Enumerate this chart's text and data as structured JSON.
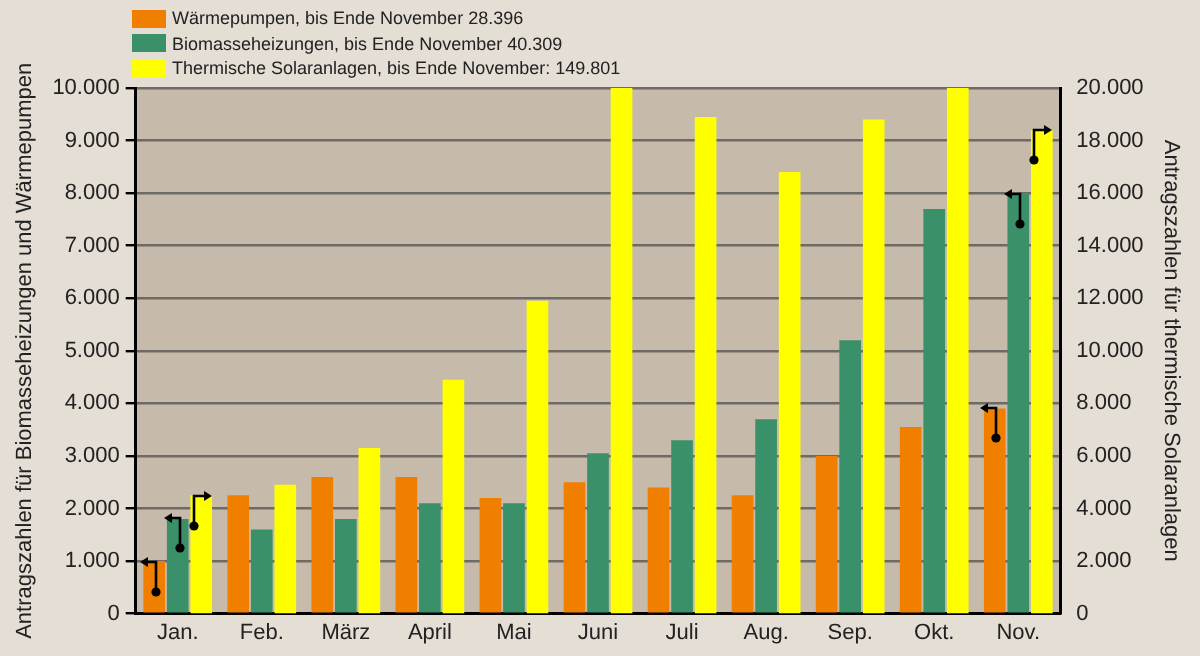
{
  "chart_data": {
    "type": "bar",
    "categories": [
      "Jan.",
      "Feb.",
      "März",
      "April",
      "Mai",
      "Juni",
      "Juli",
      "Aug.",
      "Sep.",
      "Okt.",
      "Nov."
    ],
    "series": [
      {
        "name": "Wärmepumpen, bis Ende November 28.396",
        "color": "#f07f00",
        "values": [
          1000,
          2250,
          2600,
          2600,
          2200,
          2500,
          2400,
          2250,
          3000,
          3550,
          3900
        ]
      },
      {
        "name": "Biomasseheizungen, bis Ende November 40.309",
        "color": "#3a9068",
        "values": [
          1800,
          1600,
          1800,
          2100,
          2100,
          3050,
          3300,
          3700,
          5200,
          7700,
          8000
        ]
      },
      {
        "name": "Thermische Solaranlagen, bis Ende November: 149.801",
        "color": "#ffff00",
        "axis": "y2",
        "values": [
          4500,
          4900,
          6300,
          8900,
          11900,
          20000,
          18900,
          16800,
          18800,
          20000,
          18400
        ]
      }
    ],
    "ylabel": "Antragszahlen für Biomasseheizungen und Wärmepumpen",
    "y2label": "Antragszahlen für thermische Solaranlagen",
    "ylim": [
      0,
      10000
    ],
    "yticks": [
      0,
      {
        "value": 1000,
        "label": "1.000"
      },
      {
        "value": 2000,
        "label": "2.000"
      },
      {
        "value": 3000,
        "label": "3.000"
      },
      {
        "value": 4000,
        "label": "4.000"
      },
      {
        "value": 5000,
        "label": "5.000"
      },
      {
        "value": 6000,
        "label": "6.000"
      },
      {
        "value": 7000,
        "label": "7.000"
      },
      {
        "value": 8000,
        "label": "8.000"
      },
      {
        "value": 9000,
        "label": "9.000"
      },
      {
        "value": 10000,
        "label": "10.000"
      }
    ],
    "y2lim": [
      0,
      20000
    ],
    "y2ticks": [
      0,
      {
        "value": 2000,
        "label": "2.000"
      },
      {
        "value": 4000,
        "label": "4.000"
      },
      {
        "value": 6000,
        "label": "6.000"
      },
      {
        "value": 8000,
        "label": "8.000"
      },
      {
        "value": 10000,
        "label": "10.000"
      },
      {
        "value": 12000,
        "label": "12.000"
      },
      {
        "value": 14000,
        "label": "14.000"
      },
      {
        "value": 16000,
        "label": "16.000"
      },
      {
        "value": 18000,
        "label": "18.000"
      },
      {
        "value": 20000,
        "label": "20.000"
      }
    ],
    "grid": "y",
    "legend": "top left"
  }
}
